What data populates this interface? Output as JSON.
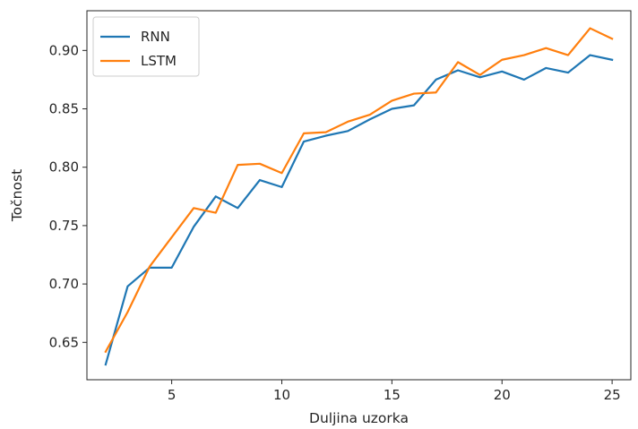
{
  "chart_data": {
    "type": "line",
    "title": "",
    "xlabel": "Duljina uzorka",
    "ylabel": "Točnost",
    "xlim": [
      1.15,
      25.85
    ],
    "ylim": [
      0.618,
      0.934
    ],
    "xticks": [
      5,
      10,
      15,
      20,
      25
    ],
    "yticks": [
      0.65,
      0.7,
      0.75,
      0.8,
      0.85,
      0.9
    ],
    "xtick_labels": [
      "5",
      "10",
      "15",
      "20",
      "25"
    ],
    "ytick_labels": [
      "0.65",
      "0.70",
      "0.75",
      "0.80",
      "0.85",
      "0.90"
    ],
    "grid": false,
    "legend_position": "top-left",
    "x": [
      2,
      3,
      4,
      5,
      6,
      7,
      8,
      9,
      10,
      11,
      12,
      13,
      14,
      15,
      16,
      17,
      18,
      19,
      20,
      21,
      22,
      23,
      24,
      25
    ],
    "series": [
      {
        "name": "RNN",
        "color": "#1f77b4",
        "values": [
          0.631,
          0.698,
          0.714,
          0.714,
          0.749,
          0.775,
          0.765,
          0.789,
          0.783,
          0.822,
          0.827,
          0.831,
          0.841,
          0.85,
          0.853,
          0.875,
          0.883,
          0.877,
          0.882,
          0.875,
          0.885,
          0.881,
          0.896,
          0.892
        ]
      },
      {
        "name": "LSTM",
        "color": "#ff7f0e",
        "values": [
          0.642,
          0.676,
          0.715,
          0.74,
          0.765,
          0.761,
          0.802,
          0.803,
          0.795,
          0.829,
          0.83,
          0.839,
          0.845,
          0.857,
          0.863,
          0.864,
          0.89,
          0.879,
          0.892,
          0.896,
          0.902,
          0.896,
          0.919,
          0.91
        ]
      }
    ]
  }
}
